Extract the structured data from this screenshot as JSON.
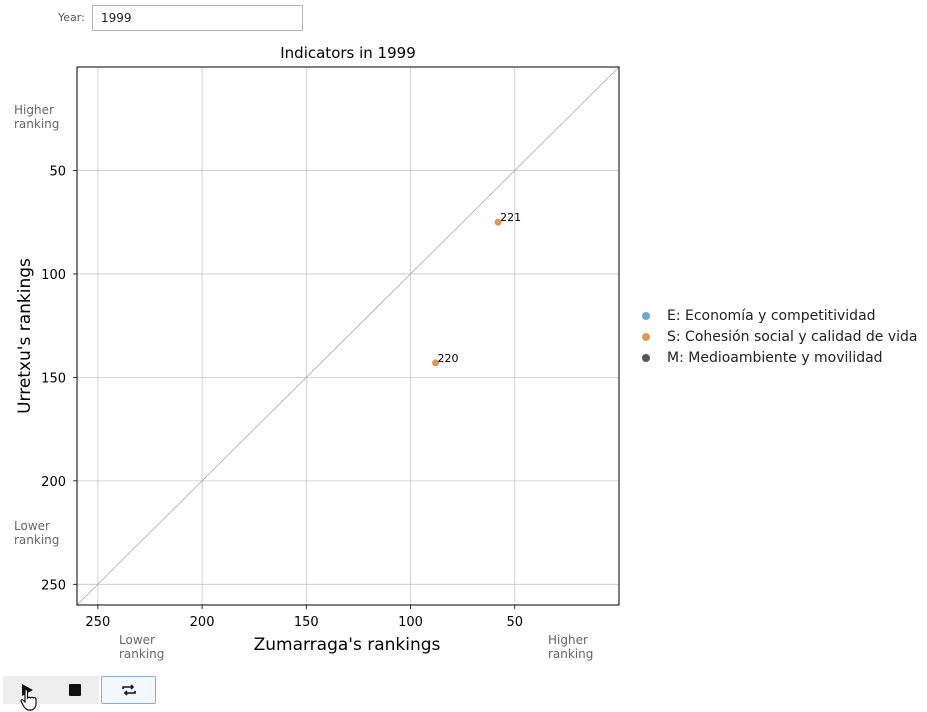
{
  "widget": {
    "year_label": "Year:",
    "year_value": "1999"
  },
  "controls": {
    "icons": [
      "play-icon",
      "stop-icon",
      "loop-icon"
    ],
    "loop_active": true
  },
  "chart_data": {
    "type": "scatter",
    "title": "Indicators in 1999",
    "xlabel": "Zumarraga's rankings",
    "ylabel": "Urretxu's rankings",
    "x_reversed": true,
    "y_reversed": true,
    "xlim": [
      260,
      0
    ],
    "ylim": [
      0,
      260
    ],
    "x_ticks": [
      250,
      200,
      150,
      100,
      50
    ],
    "y_ticks": [
      50,
      100,
      150,
      200,
      250
    ],
    "grid": true,
    "diagonal": true,
    "notes": {
      "y_high": [
        "Higher",
        "ranking"
      ],
      "y_low": [
        "Lower",
        "ranking"
      ],
      "x_low": [
        "Lower",
        "ranking"
      ],
      "x_high": [
        "Higher",
        "ranking"
      ]
    },
    "legend_position": "right",
    "series": [
      {
        "name": "E: Economía y competitividad",
        "color": "#6ea6cd",
        "points": []
      },
      {
        "name": "S: Cohesión social y calidad de vida",
        "color": "#dd9a55",
        "points": [
          {
            "x": 58,
            "y": 75,
            "label": "221"
          },
          {
            "x": 88,
            "y": 143,
            "label": "220"
          }
        ]
      },
      {
        "name": "M: Medioambiente y movilidad",
        "color": "#555555",
        "points": []
      }
    ]
  }
}
